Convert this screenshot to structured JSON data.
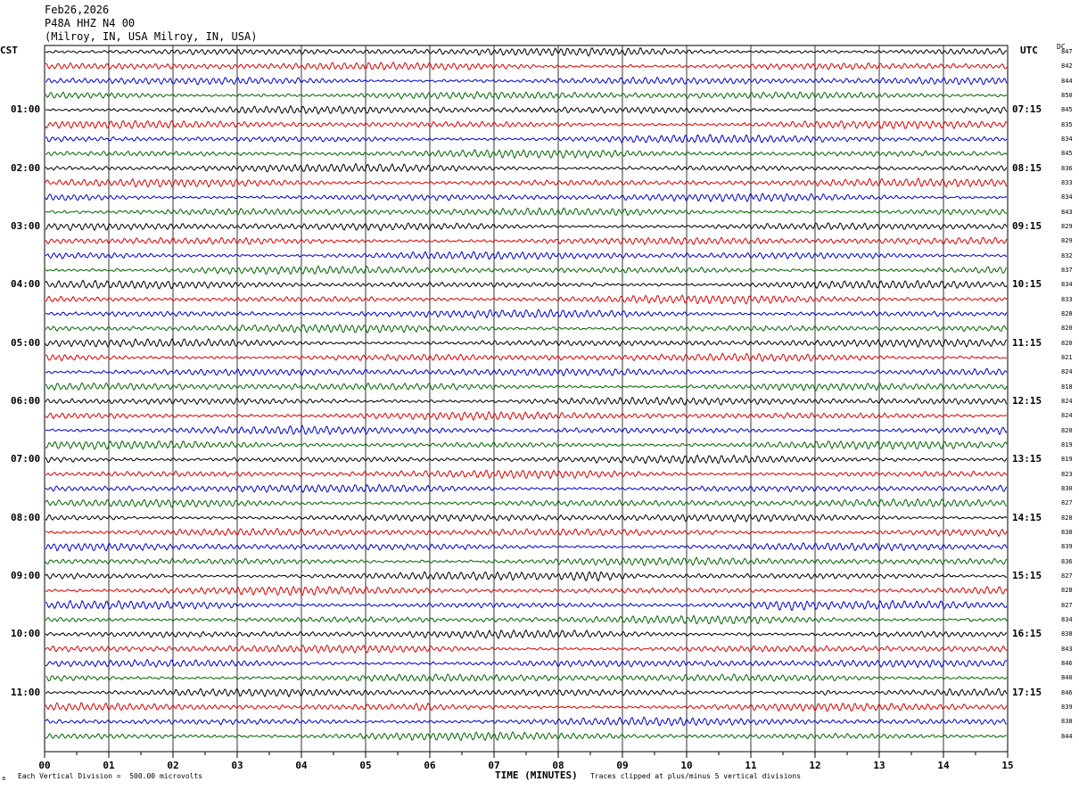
{
  "header": {
    "date": "Feb26,2026",
    "station": "P48A HHZ N4 00",
    "location": "(Milroy, IN, USA Milroy, IN, USA)"
  },
  "corner": {
    "left_tz": "CST",
    "right_tz": "UTC",
    "dc_label": "DC"
  },
  "footer": {
    "scale_note": "Each Vertical Division =  500.00 microvolts",
    "clip_note": "Traces clipped at plus/minus 5 vertical divisions",
    "mark": "a"
  },
  "chart_data": {
    "type": "line",
    "xlabel": "TIME (MINUTES)",
    "xlim": [
      0,
      15
    ],
    "x_ticks": [
      "00",
      "01",
      "02",
      "03",
      "04",
      "05",
      "06",
      "07",
      "08",
      "09",
      "10",
      "11",
      "12",
      "13",
      "14",
      "15"
    ],
    "trace_colors": [
      "#000000",
      "#dd0000",
      "#0000cc",
      "#006600"
    ],
    "left_time_labels": [
      {
        "label": "01:00",
        "row": 4
      },
      {
        "label": "02:00",
        "row": 8
      },
      {
        "label": "03:00",
        "row": 12
      },
      {
        "label": "04:00",
        "row": 16
      },
      {
        "label": "05:00",
        "row": 20
      },
      {
        "label": "06:00",
        "row": 24
      },
      {
        "label": "07:00",
        "row": 28
      },
      {
        "label": "08:00",
        "row": 32
      },
      {
        "label": "09:00",
        "row": 36
      },
      {
        "label": "10:00",
        "row": 40
      },
      {
        "label": "11:00",
        "row": 44
      }
    ],
    "right_time_labels": [
      {
        "label": "07:15",
        "row": 4
      },
      {
        "label": "08:15",
        "row": 8
      },
      {
        "label": "09:15",
        "row": 12
      },
      {
        "label": "10:15",
        "row": 16
      },
      {
        "label": "11:15",
        "row": 20
      },
      {
        "label": "12:15",
        "row": 24
      },
      {
        "label": "13:15",
        "row": 28
      },
      {
        "label": "14:15",
        "row": 32
      },
      {
        "label": "15:15",
        "row": 36
      },
      {
        "label": "16:15",
        "row": 40
      },
      {
        "label": "17:15",
        "row": 44
      }
    ],
    "dc_offsets": [
      "847",
      "842",
      "844",
      "850",
      "845",
      "835",
      "834",
      "845",
      "836",
      "833",
      "834",
      "843",
      "829",
      "829",
      "832",
      "837",
      "834",
      "833",
      "828",
      "820",
      "820",
      "821",
      "824",
      "818",
      "824",
      "824",
      "820",
      "819",
      "819",
      "823",
      "830",
      "827",
      "828",
      "838",
      "839",
      "836",
      "827",
      "828",
      "827",
      "834",
      "838",
      "843",
      "846",
      "840",
      "846",
      "839",
      "838",
      "844"
    ],
    "events": [
      {
        "row": 36,
        "minute_start": 8.0,
        "minute_end": 9.2,
        "amp": 1.9
      },
      {
        "row": 38,
        "minute_start": 10.8,
        "minute_end": 12.1,
        "amp": 1.6
      },
      {
        "row": 33,
        "minute_start": 10.0,
        "minute_end": 11.0,
        "amp": 1.5
      },
      {
        "row": 44,
        "minute_start": 11.95,
        "minute_end": 12.4,
        "amp": 2.6
      },
      {
        "row": 45,
        "minute_start": 5.7,
        "minute_end": 6.1,
        "amp": 1.4
      }
    ]
  }
}
